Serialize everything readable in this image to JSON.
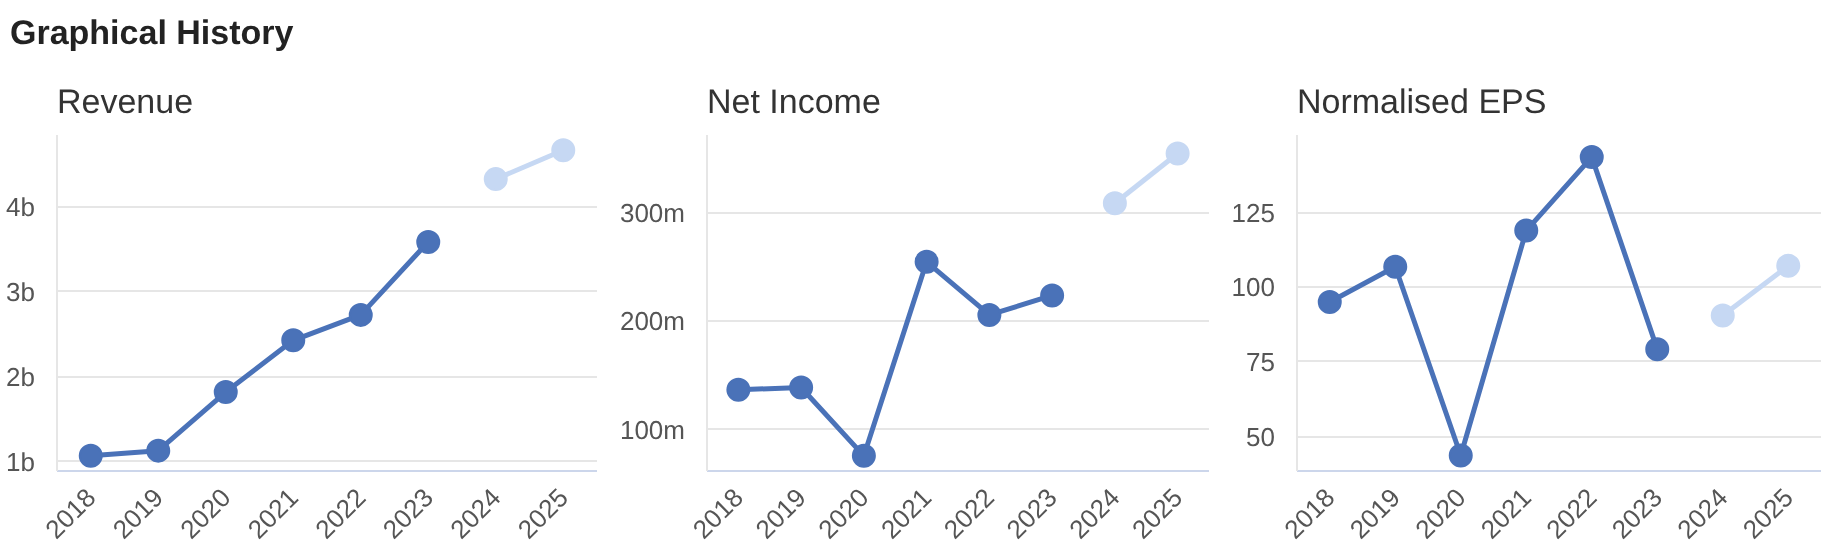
{
  "chart_data": [
    {
      "type": "line",
      "title": "Revenue",
      "annotations": [
        "Graphical History"
      ],
      "categories": [
        "2018",
        "2019",
        "2020",
        "2021",
        "2022",
        "2023",
        "2024",
        "2025"
      ],
      "series": [
        {
          "color": "#4a72b8",
          "values": [
            1.07,
            1.13,
            1.82,
            2.43,
            2.73,
            3.59,
            null,
            null
          ]
        },
        {
          "color": "#c6d8f3",
          "values": [
            null,
            null,
            null,
            null,
            null,
            null,
            4.33,
            4.67
          ]
        }
      ],
      "ylim": [
        0.89,
        4.85
      ],
      "yticks": [
        {
          "value": 1,
          "label": "1b"
        },
        {
          "value": 2,
          "label": "2b"
        },
        {
          "value": 3,
          "label": "3b"
        },
        {
          "value": 4,
          "label": "4b"
        }
      ],
      "grid": "y",
      "marker": "circle",
      "line_style": "solid"
    },
    {
      "type": "line",
      "title": "Net Income",
      "categories": [
        "2018",
        "2019",
        "2020",
        "2021",
        "2022",
        "2023",
        "2024",
        "2025"
      ],
      "series": [
        {
          "color": "#4a72b8",
          "values": [
            137,
            139,
            76,
            255,
            206,
            224,
            null,
            null
          ]
        },
        {
          "color": "#c6d8f3",
          "values": [
            null,
            null,
            null,
            null,
            null,
            null,
            309,
            355
          ]
        }
      ],
      "ylim": [
        62,
        372
      ],
      "yticks": [
        {
          "value": 100,
          "label": "100m"
        },
        {
          "value": 200,
          "label": "200m"
        },
        {
          "value": 300,
          "label": "300m"
        }
      ],
      "grid": "y",
      "marker": "circle",
      "line_style": "solid"
    },
    {
      "type": "line",
      "title": "Normalised EPS",
      "categories": [
        "2018",
        "2019",
        "2020",
        "2021",
        "2022",
        "2023",
        "2024",
        "2025"
      ],
      "series": [
        {
          "color": "#4a72b8",
          "values": [
            95.1,
            106.9,
            43.7,
            119,
            143.6,
            79.3,
            null,
            null
          ]
        },
        {
          "color": "#c6d8f3",
          "values": [
            null,
            null,
            null,
            null,
            null,
            null,
            90.6,
            107.2
          ]
        }
      ],
      "ylim": [
        38.5,
        151
      ],
      "yticks": [
        50,
        75,
        100,
        125
      ],
      "grid": "y",
      "marker": "circle",
      "line_style": "solid"
    }
  ]
}
